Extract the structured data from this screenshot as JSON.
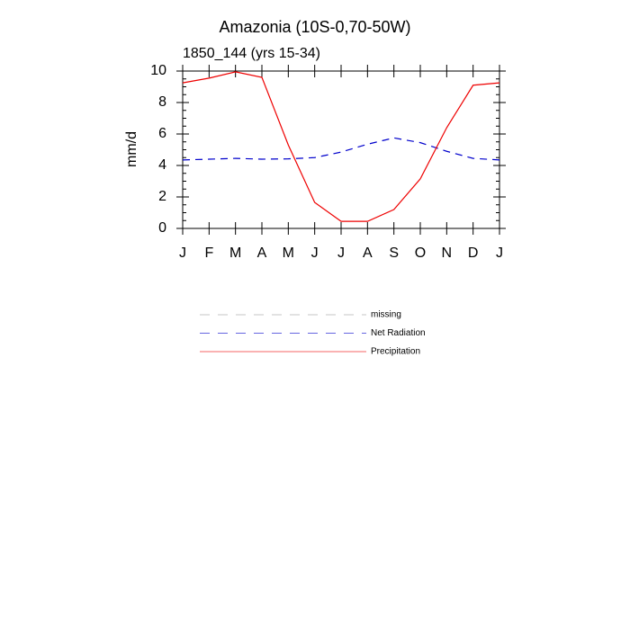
{
  "chart_data": {
    "type": "line",
    "title": "Amazonia (10S-0,70-50W)",
    "subtitle": "1850_144 (yrs 15-34)",
    "y_label": "mm/d",
    "categories": [
      "J",
      "F",
      "M",
      "A",
      "M",
      "J",
      "J",
      "A",
      "S",
      "O",
      "N",
      "D",
      "J"
    ],
    "ylim": [
      0,
      10
    ],
    "yticks": [
      0,
      2,
      4,
      6,
      8,
      10
    ],
    "yminorticks": [
      0.5,
      1,
      1.5,
      2.5,
      3,
      3.5,
      4.5,
      5,
      5.5,
      6.5,
      7,
      7.5,
      8.5,
      9,
      9.5
    ],
    "grid": false,
    "series": [
      {
        "name": "missing",
        "color": "#a0a0a0",
        "dash": "dashed",
        "values": [
          null,
          null,
          null,
          null,
          null,
          null,
          null,
          null,
          null,
          null,
          null,
          null,
          null
        ]
      },
      {
        "name": "Net Radiation",
        "color": "#0000cc",
        "dash": "dashed",
        "values": [
          4.35,
          4.4,
          4.45,
          4.4,
          4.42,
          4.5,
          4.85,
          5.35,
          5.75,
          5.45,
          4.9,
          4.45,
          4.35
        ]
      },
      {
        "name": "Precipitation",
        "color": "#ee0000",
        "dash": "solid",
        "values": [
          9.25,
          9.55,
          9.95,
          9.6,
          5.3,
          1.65,
          0.45,
          0.45,
          1.2,
          3.15,
          6.4,
          9.1,
          9.25
        ]
      }
    ]
  }
}
